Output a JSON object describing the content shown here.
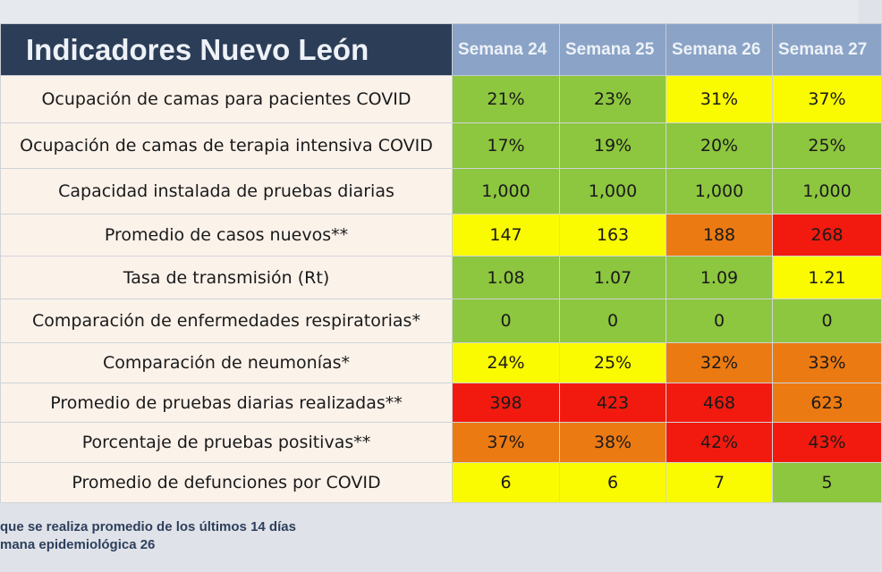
{
  "header": {
    "title": "Indicadores Nuevo León",
    "weeks": [
      "Semana 24",
      "Semana 25",
      "Semana 26",
      "Semana 27"
    ]
  },
  "colors": {
    "green": "#8dc63f",
    "yellow": "#fafa00",
    "orange": "#ec7a12",
    "red": "#f21a0f",
    "header_dark": "#2c3e57",
    "header_week": "#8aa3c6"
  },
  "rows": [
    {
      "label": "Ocupación de camas para pacientes COVID",
      "values": [
        "21%",
        "23%",
        "31%",
        "37%"
      ],
      "status": [
        "g",
        "g",
        "y",
        "y"
      ]
    },
    {
      "label": "Ocupación de camas de terapia intensiva COVID",
      "values": [
        "17%",
        "19%",
        "20%",
        "25%"
      ],
      "status": [
        "g",
        "g",
        "g",
        "g"
      ]
    },
    {
      "label": "Capacidad instalada de pruebas diarias",
      "values": [
        "1,000",
        "1,000",
        "1,000",
        "1,000"
      ],
      "status": [
        "g",
        "g",
        "g",
        "g"
      ]
    },
    {
      "label": "Promedio de casos nuevos**",
      "values": [
        "147",
        "163",
        "188",
        "268"
      ],
      "status": [
        "y",
        "y",
        "o",
        "r"
      ]
    },
    {
      "label": "Tasa de transmisión (Rt)",
      "values": [
        "1.08",
        "1.07",
        "1.09",
        "1.21"
      ],
      "status": [
        "g",
        "g",
        "g",
        "y"
      ]
    },
    {
      "label": "Comparación de enfermedades respiratorias*",
      "values": [
        "0",
        "0",
        "0",
        "0"
      ],
      "status": [
        "g",
        "g",
        "g",
        "g"
      ]
    },
    {
      "label": "Comparación de neumonías*",
      "values": [
        "24%",
        "25%",
        "32%",
        "33%"
      ],
      "status": [
        "y",
        "y",
        "o",
        "o"
      ]
    },
    {
      "label": "Promedio de pruebas diarias realizadas**",
      "values": [
        "398",
        "423",
        "468",
        "623"
      ],
      "status": [
        "r",
        "r",
        "r",
        "o"
      ]
    },
    {
      "label": "Porcentaje de pruebas positivas**",
      "values": [
        "37%",
        "38%",
        "42%",
        "43%"
      ],
      "status": [
        "o",
        "o",
        "r",
        "r"
      ]
    },
    {
      "label": "Promedio de defunciones por COVID",
      "values": [
        "6",
        "6",
        "7",
        "5"
      ],
      "status": [
        "y",
        "y",
        "y",
        "g"
      ]
    }
  ],
  "footer": {
    "note1": "que se realiza promedio de los últimos 14 días",
    "note2": "mana epidemiológica 26"
  }
}
